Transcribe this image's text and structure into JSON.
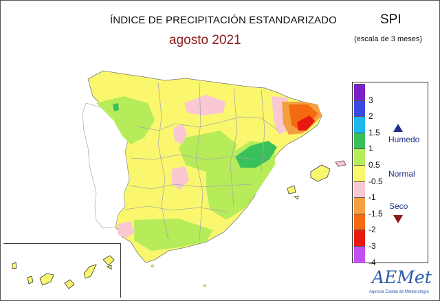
{
  "header": {
    "title": "ÍNDICE DE PRECIPITACIÓN ESTANDARIZADO",
    "period": "agosto 2021",
    "index": "SPI",
    "scale": "(escala de 3 meses)"
  },
  "legend": {
    "ticks": [
      "3",
      "2",
      "1.5",
      "1",
      "0.5",
      "-0.5",
      "-1",
      "-1.5",
      "-2",
      "-3",
      "-4"
    ],
    "colors": [
      "#7a22c8",
      "#3a49e0",
      "#1cb8f0",
      "#38c05a",
      "#b6ec5a",
      "#faf76e",
      "#f9c8d2",
      "#f4a040",
      "#f46a10",
      "#e81a10",
      "#c050f0"
    ],
    "labels": {
      "wet": "Humedo",
      "normal": "Normal",
      "dry": "Seco"
    }
  },
  "logo": {
    "name": "AEMet",
    "subtitle": "Agencia Estatal de Meteorología"
  }
}
